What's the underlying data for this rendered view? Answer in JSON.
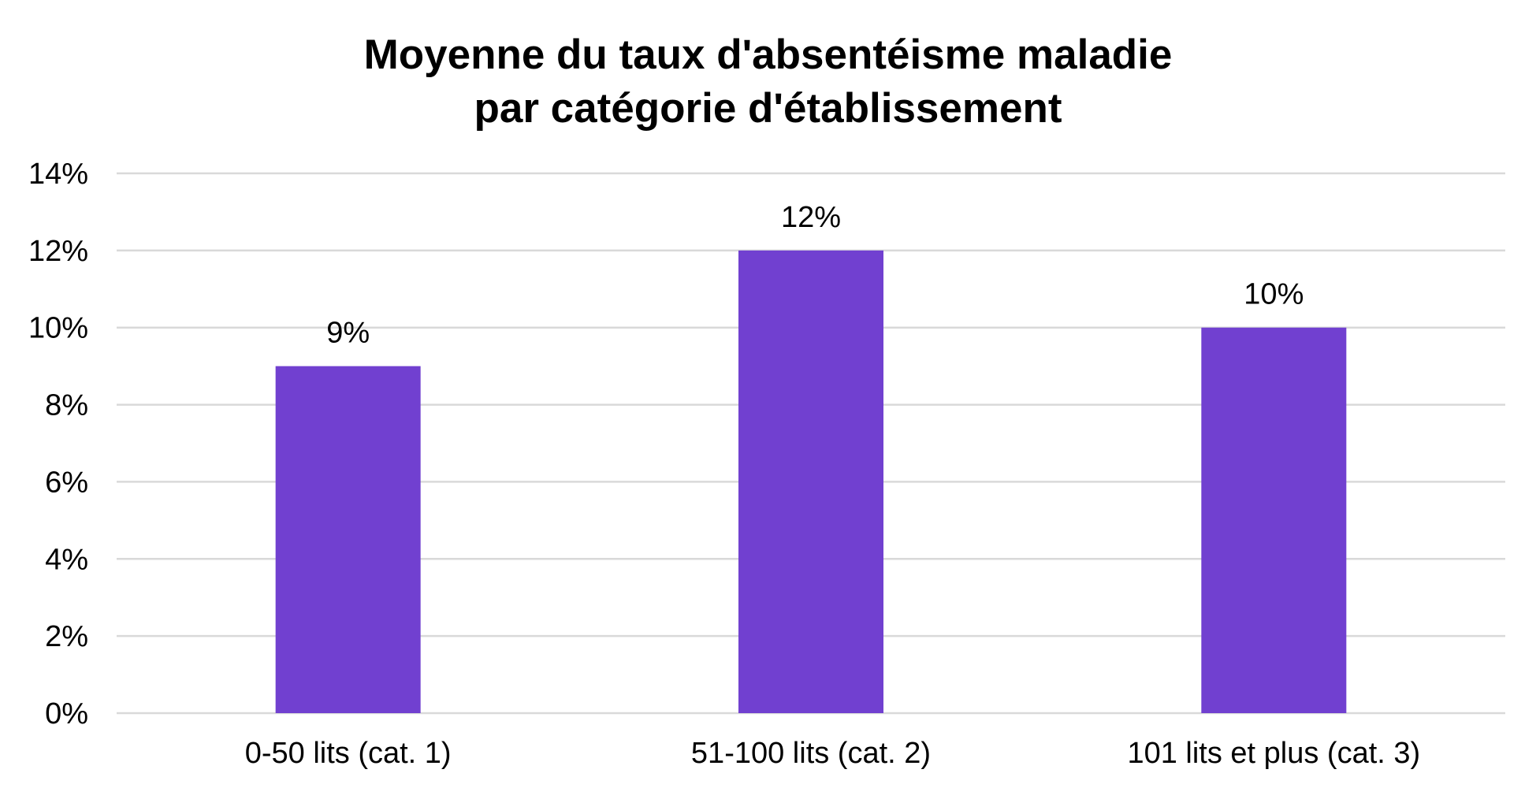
{
  "chart_data": {
    "type": "bar",
    "title_line1": "Moyenne du taux d'absentéisme maladie",
    "title_line2": "par catégorie d'établissement",
    "xlabel": "",
    "ylabel": "",
    "categories": [
      "0-50 lits (cat. 1)",
      "51-100 lits (cat. 2)",
      "101 lits et plus (cat. 3)"
    ],
    "series": [
      {
        "values": [
          9,
          12,
          10
        ],
        "data_labels": [
          "9%",
          "12%",
          "10%"
        ],
        "color": "#7140d0"
      }
    ],
    "ylim": [
      0,
      14
    ],
    "yticks": [
      0,
      2,
      4,
      6,
      8,
      10,
      12,
      14
    ],
    "ytick_labels": [
      "0%",
      "2%",
      "4%",
      "6%",
      "8%",
      "10%",
      "12%",
      "14%"
    ],
    "grid": true,
    "grid_color": "#d9d9d9",
    "legend": "none"
  }
}
